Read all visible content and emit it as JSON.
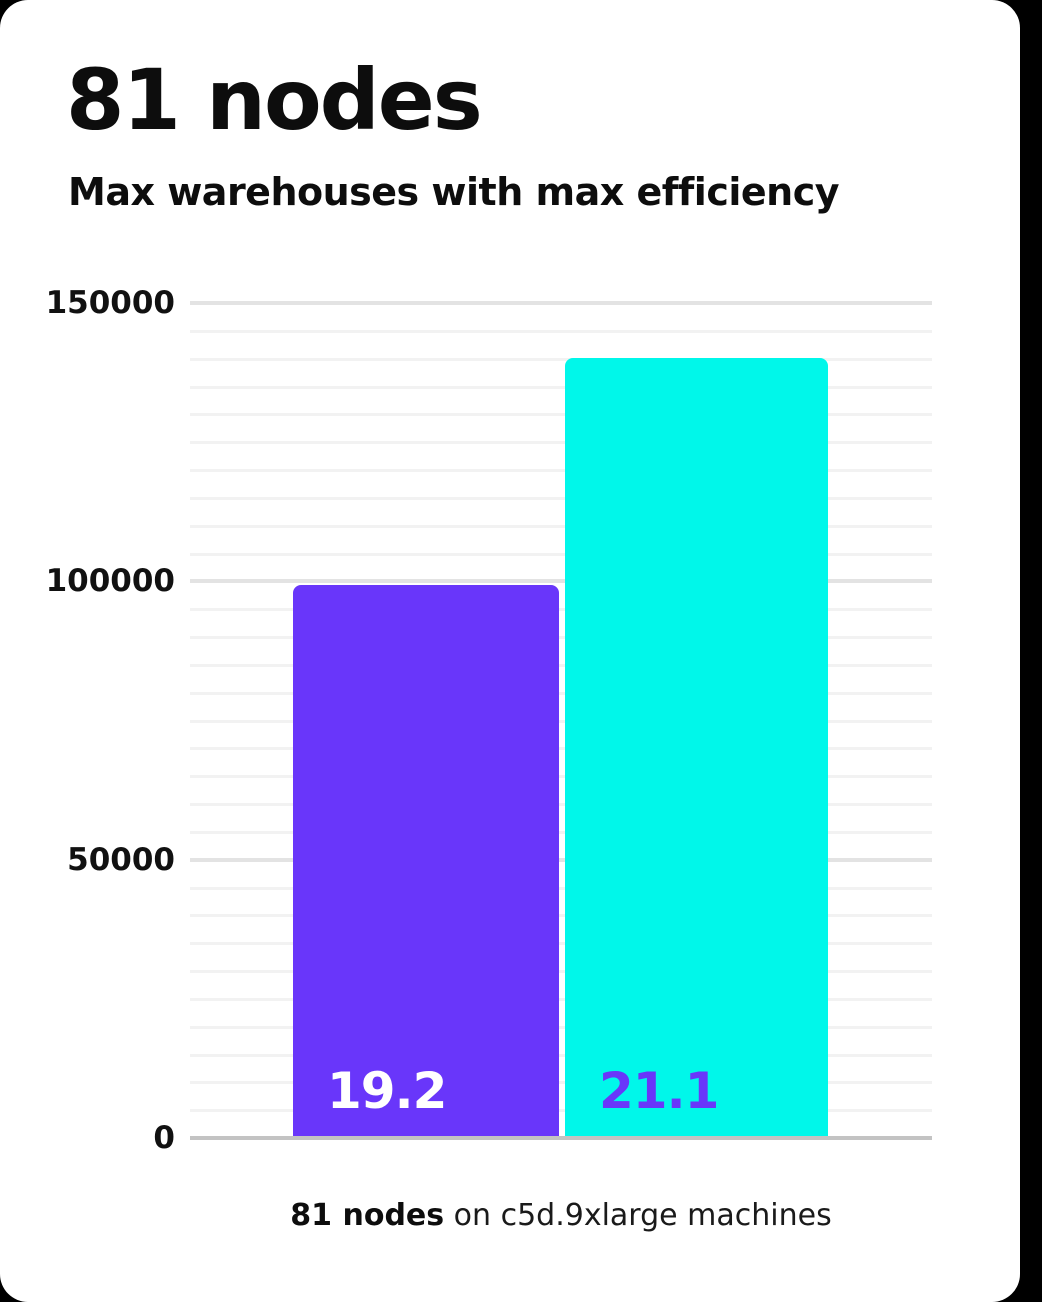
{
  "card": {
    "title": "81 nodes",
    "subtitle": "Max warehouses with max efficiency"
  },
  "caption": {
    "bold": "81 nodes",
    "rest": " on c5d.9xlarge machines"
  },
  "chart_data": {
    "type": "bar",
    "title": "81 nodes",
    "subtitle": "Max warehouses with max efficiency",
    "categories": [
      "bar-1",
      "bar-2"
    ],
    "values": [
      99400,
      140200
    ],
    "bar_labels": [
      "19.2",
      "21.1"
    ],
    "series_colors": [
      "#6936fa",
      "#00f7ea"
    ],
    "bar_label_colors": [
      "#ffffff",
      "#6936fa"
    ],
    "xlabel": "",
    "ylabel": "",
    "ylim": [
      0,
      150000
    ],
    "yticks": [
      0,
      50000,
      100000,
      150000
    ],
    "ytick_labels": [
      "0",
      "50000",
      "100000",
      "150000"
    ],
    "minor_grid_step": 5000,
    "major_grid_step": 50000,
    "grid": true,
    "legend": false,
    "caption": "81 nodes on c5d.9xlarge machines"
  },
  "colors": {
    "background": "#000000",
    "card": "#ffffff",
    "purple": "#6936fa",
    "cyan": "#00f7ea",
    "axis_line": "#c3c3c3",
    "grid_minor": "#f2f2f2",
    "grid_major": "#e3e3e3",
    "text": "#0d0d0d"
  }
}
